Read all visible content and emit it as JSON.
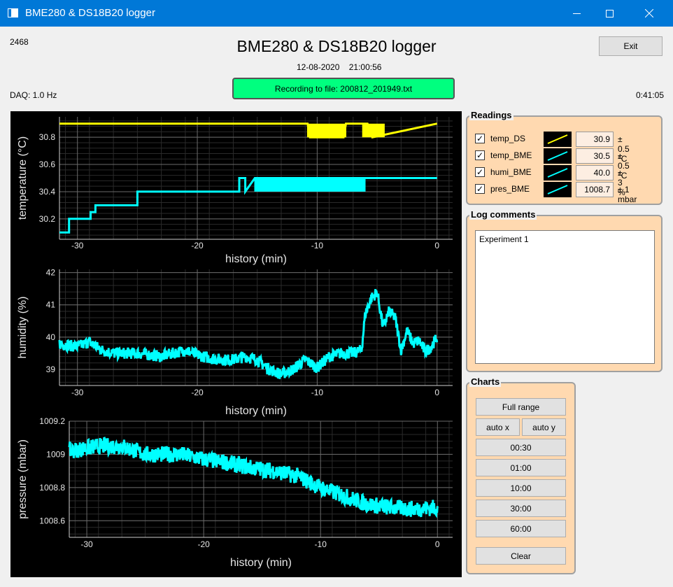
{
  "window": {
    "title": "BME280 & DS18B20 logger"
  },
  "header": {
    "counter": "2468",
    "title": "BME280 & DS18B20 logger",
    "date": "12-08-2020",
    "time": "21:00:56",
    "daq": "DAQ: 1.0 Hz",
    "elapsed": "0:41:05",
    "exit_label": "Exit",
    "recording_label": "Recording to file: 200812_201949.txt",
    "recording_color": "#00ff7f"
  },
  "readings": {
    "title": "Readings",
    "rows": [
      {
        "name": "temp_DS",
        "value": "30.9",
        "uncertainty": "± 0.5 °C",
        "color": "#ffff00",
        "checked": true
      },
      {
        "name": "temp_BME",
        "value": "30.5",
        "uncertainty": "± 0.5 °C",
        "color": "#00ffff",
        "checked": true
      },
      {
        "name": "humi_BME",
        "value": "40.0",
        "uncertainty": "± 3 %",
        "color": "#00ffff",
        "checked": true
      },
      {
        "name": "pres_BME",
        "value": "1008.7",
        "uncertainty": "± 1 mbar",
        "color": "#00ffff",
        "checked": true
      }
    ]
  },
  "log": {
    "title": "Log comments",
    "text": "Experiment 1"
  },
  "charts_panel": {
    "title": "Charts",
    "full_range": "Full range",
    "auto_x": "auto x",
    "auto_y": "auto y",
    "ranges": [
      "00:30",
      "01:00",
      "10:00",
      "30:00",
      "60:00"
    ],
    "clear": "Clear"
  },
  "chart_data": [
    {
      "type": "line",
      "xlabel": "history (min)",
      "ylabel": "temperature (°C)",
      "xlim": [
        -31.5,
        1.3
      ],
      "ylim": [
        30.05,
        30.95
      ],
      "xticks": [
        -30,
        -20,
        -10,
        0
      ],
      "yticks": [
        30.2,
        30.4,
        30.6,
        30.8
      ],
      "ytick_labels": [
        "30.2",
        "30.4",
        "30.6",
        "30.8"
      ],
      "grid": true,
      "series": [
        {
          "color": "#ffff00",
          "x": [
            -31.5,
            -10.8,
            -10.6,
            -7.8,
            -7.6,
            -5.8,
            -5.4,
            0
          ],
          "y": [
            30.9,
            30.9,
            30.8,
            30.8,
            30.9,
            30.9,
            30.8,
            30.9
          ],
          "noise": [
            [
              -10.8,
              -7.6,
              30.8,
              30.9
            ],
            [
              -6.2,
              -4.4,
              30.8,
              30.9
            ]
          ]
        },
        {
          "color": "#00ffff",
          "x": [
            -31.5,
            -30.7,
            -30.7,
            -28.9,
            -28.9,
            -28.5,
            -28.5,
            -25.0,
            -25.0,
            -16.5,
            -16.5,
            -16.0,
            -16.0,
            -15.2,
            -8.0,
            -6.2,
            -6.0,
            0
          ],
          "y": [
            30.1,
            30.1,
            30.2,
            30.2,
            30.25,
            30.25,
            30.3,
            30.3,
            30.4,
            30.4,
            30.5,
            30.5,
            30.4,
            30.5,
            30.5,
            30.5,
            30.5,
            30.5
          ],
          "noise": [
            [
              -15.2,
              -10.0,
              30.4,
              30.5
            ],
            [
              -10.0,
              -6.0,
              30.4,
              30.5
            ]
          ]
        }
      ]
    },
    {
      "type": "line",
      "xlabel": "history (min)",
      "ylabel": "humidity (%)",
      "xlim": [
        -31.5,
        1.3
      ],
      "ylim": [
        38.5,
        42.1
      ],
      "xticks": [
        -30,
        -20,
        -10,
        0
      ],
      "yticks": [
        39,
        40,
        41,
        42
      ],
      "ytick_labels": [
        "39",
        "40",
        "41",
        "42"
      ],
      "grid": true,
      "series": [
        {
          "color": "#00ffff",
          "x": [
            -31.5,
            -30,
            -29,
            -28,
            -27,
            -26,
            -25,
            -24,
            -23,
            -22,
            -21,
            -20,
            -19,
            -18,
            -17,
            -16,
            -15,
            -14,
            -13,
            -12,
            -11,
            -10,
            -9,
            -8,
            -7,
            -6.3,
            -6.0,
            -5.5,
            -5,
            -4.5,
            -4,
            -3.5,
            -3,
            -2.5,
            -2,
            -1.5,
            -1,
            -0.5,
            0
          ],
          "y": [
            39.8,
            39.7,
            39.85,
            39.6,
            39.5,
            39.5,
            39.5,
            39.45,
            39.4,
            39.5,
            39.6,
            39.45,
            39.35,
            39.3,
            39.3,
            39.4,
            39.3,
            39.0,
            38.85,
            39.0,
            39.3,
            39.05,
            39.4,
            39.5,
            39.5,
            39.6,
            40.7,
            41.2,
            41.4,
            40.3,
            40.8,
            40.6,
            39.6,
            40.2,
            39.8,
            39.9,
            39.55,
            39.7,
            40.0
          ],
          "noise_amp": 0.18
        }
      ]
    },
    {
      "type": "line",
      "xlabel": "history (min)",
      "ylabel": "pressure (mbar)",
      "xlim": [
        -31.5,
        1.3
      ],
      "ylim": [
        1008.5,
        1009.2
      ],
      "xticks": [
        -30,
        -20,
        -10,
        0
      ],
      "yticks": [
        1008.6,
        1008.8,
        1009.0,
        1009.2
      ],
      "ytick_labels": [
        "1008.6",
        "1008.8",
        "1009",
        "1009.2"
      ],
      "grid": true,
      "series": [
        {
          "color": "#00ffff",
          "x": [
            -31.5,
            -29,
            -27,
            -25,
            -22,
            -20,
            -18,
            -16,
            -14,
            -12,
            -10,
            -8,
            -6,
            -4,
            -2,
            0
          ],
          "y": [
            1009.02,
            1009.05,
            1009.05,
            1009.0,
            1009.0,
            1008.97,
            1008.95,
            1008.92,
            1008.9,
            1008.87,
            1008.8,
            1008.75,
            1008.7,
            1008.68,
            1008.67,
            1008.68
          ],
          "noise_amp": 0.05
        }
      ]
    }
  ]
}
